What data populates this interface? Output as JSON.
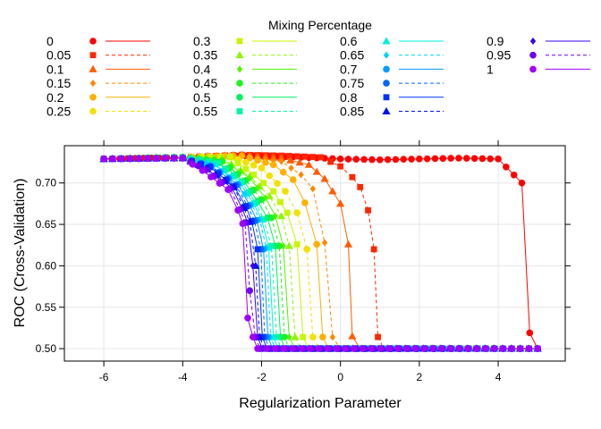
{
  "chart_data": {
    "type": "line",
    "title": "",
    "xlabel": "Regularization Parameter",
    "ylabel": "ROC (Cross-Validation)",
    "xlim": [
      -7.0,
      5.7
    ],
    "ylim": [
      0.485,
      0.745
    ],
    "xticks": [
      -6,
      -4,
      -2,
      0,
      2,
      4
    ],
    "yticks": [
      0.5,
      0.55,
      0.6,
      0.65,
      0.7
    ],
    "ytick_labels": [
      "0.50",
      "0.55",
      "0.60",
      "0.65",
      "0.70"
    ],
    "grid": true,
    "legend": {
      "title": "Mixing Percentage",
      "placement": "top",
      "columns": 4,
      "entries": [
        "0",
        "0.05",
        "0.1",
        "0.15",
        "0.2",
        "0.25",
        "0.3",
        "0.35",
        "0.4",
        "0.45",
        "0.5",
        "0.55",
        "0.6",
        "0.65",
        "0.7",
        "0.75",
        "0.8",
        "0.85",
        "0.9",
        "0.95",
        "1"
      ]
    },
    "series": [
      {
        "name": "0",
        "color": "#FF0000",
        "marker": "circle",
        "linestyle": "solid",
        "x": [
          -6.0,
          -5.0,
          -4.0,
          -3.0,
          -2.0,
          -1.0,
          0.0,
          1.0,
          2.0,
          3.0,
          4.0,
          4.6,
          4.8,
          5.0
        ],
        "y": [
          0.729,
          0.73,
          0.731,
          0.732,
          0.733,
          0.731,
          0.729,
          0.728,
          0.729,
          0.73,
          0.729,
          0.7,
          0.519,
          0.5
        ]
      },
      {
        "name": "0.05",
        "color": "#FF2600",
        "marker": "square",
        "linestyle": "dashed",
        "x": [
          -6.0,
          -4.0,
          -2.5,
          -1.5,
          -0.5,
          0.0,
          0.3,
          0.5,
          0.7,
          0.85,
          0.95,
          1.1,
          5.0
        ],
        "y": [
          0.729,
          0.731,
          0.734,
          0.733,
          0.731,
          0.72,
          0.707,
          0.695,
          0.667,
          0.62,
          0.514,
          0.5,
          0.5
        ]
      },
      {
        "name": "0.1",
        "color": "#FF5C00",
        "marker": "triangle-up",
        "linestyle": "solid",
        "x": [
          -6.0,
          -4.0,
          -2.5,
          -1.5,
          -0.8,
          -0.4,
          0.0,
          0.2,
          0.3,
          0.5,
          5.0
        ],
        "y": [
          0.729,
          0.731,
          0.734,
          0.73,
          0.722,
          0.705,
          0.675,
          0.626,
          0.515,
          0.5,
          0.5
        ]
      },
      {
        "name": "0.15",
        "color": "#FF8800",
        "marker": "diamond",
        "linestyle": "dashed",
        "x": [
          -6.0,
          -4.0,
          -2.5,
          -1.5,
          -1.0,
          -0.7,
          -0.4,
          -0.2,
          0.0,
          5.0
        ],
        "y": [
          0.729,
          0.731,
          0.733,
          0.726,
          0.71,
          0.693,
          0.628,
          0.514,
          0.5,
          0.5
        ]
      },
      {
        "name": "0.2",
        "color": "#FFB000",
        "marker": "circle",
        "linestyle": "solid",
        "x": [
          -6.0,
          -4.0,
          -2.5,
          -1.7,
          -1.2,
          -0.9,
          -0.6,
          -0.45,
          -0.3,
          5.0
        ],
        "y": [
          0.729,
          0.731,
          0.733,
          0.722,
          0.704,
          0.676,
          0.626,
          0.514,
          0.5,
          0.5
        ]
      },
      {
        "name": "0.25",
        "color": "#F2E200",
        "marker": "circle",
        "linestyle": "dashed",
        "x": [
          -6.0,
          -4.0,
          -2.8,
          -2.0,
          -1.4,
          -1.1,
          -0.85,
          -0.7,
          -0.55,
          5.0
        ],
        "y": [
          0.729,
          0.731,
          0.732,
          0.718,
          0.69,
          0.664,
          0.62,
          0.514,
          0.5,
          0.5
        ]
      },
      {
        "name": "0.3",
        "color": "#C7F500",
        "marker": "square",
        "linestyle": "solid",
        "x": [
          -6.0,
          -4.0,
          -2.8,
          -2.2,
          -1.7,
          -1.35,
          -1.1,
          -0.95,
          -0.8,
          5.0
        ],
        "y": [
          0.729,
          0.731,
          0.731,
          0.71,
          0.69,
          0.664,
          0.626,
          0.514,
          0.5,
          0.5
        ]
      },
      {
        "name": "0.35",
        "color": "#8EF500",
        "marker": "triangle-up",
        "linestyle": "dashed",
        "x": [
          -6.0,
          -4.0,
          -3.0,
          -2.3,
          -1.8,
          -1.5,
          -1.3,
          -1.15,
          -1.0,
          5.0
        ],
        "y": [
          0.729,
          0.731,
          0.73,
          0.708,
          0.684,
          0.66,
          0.624,
          0.514,
          0.5,
          0.5
        ]
      },
      {
        "name": "0.4",
        "color": "#52F500",
        "marker": "diamond",
        "linestyle": "solid",
        "x": [
          -6.0,
          -4.0,
          -3.0,
          -2.3,
          -1.9,
          -1.65,
          -1.45,
          -1.3,
          -1.15,
          5.0
        ],
        "y": [
          0.729,
          0.731,
          0.728,
          0.706,
          0.682,
          0.66,
          0.624,
          0.514,
          0.5,
          0.5
        ]
      },
      {
        "name": "0.45",
        "color": "#1FF21F",
        "marker": "circle",
        "linestyle": "dashed",
        "x": [
          -6.0,
          -4.0,
          -3.0,
          -2.4,
          -2.0,
          -1.75,
          -1.55,
          -1.42,
          -1.3,
          5.0
        ],
        "y": [
          0.729,
          0.731,
          0.726,
          0.703,
          0.68,
          0.658,
          0.624,
          0.514,
          0.5,
          0.5
        ]
      },
      {
        "name": "0.5",
        "color": "#00F060",
        "marker": "circle",
        "linestyle": "solid",
        "x": [
          -6.0,
          -4.0,
          -3.1,
          -2.45,
          -2.1,
          -1.85,
          -1.65,
          -1.52,
          -1.4,
          5.0
        ],
        "y": [
          0.729,
          0.731,
          0.725,
          0.702,
          0.678,
          0.658,
          0.624,
          0.514,
          0.5,
          0.5
        ]
      },
      {
        "name": "0.55",
        "color": "#00F5A0",
        "marker": "square",
        "linestyle": "dashed",
        "x": [
          -6.0,
          -4.0,
          -3.1,
          -2.5,
          -2.15,
          -1.95,
          -1.75,
          -1.62,
          -1.5,
          5.0
        ],
        "y": [
          0.729,
          0.731,
          0.724,
          0.701,
          0.676,
          0.656,
          0.624,
          0.514,
          0.5,
          0.5
        ]
      },
      {
        "name": "0.6",
        "color": "#00F0DC",
        "marker": "triangle-up",
        "linestyle": "solid",
        "x": [
          -6.0,
          -4.0,
          -3.2,
          -2.55,
          -2.2,
          -2.0,
          -1.82,
          -1.7,
          -1.58,
          5.0
        ],
        "y": [
          0.729,
          0.731,
          0.723,
          0.7,
          0.675,
          0.656,
          0.622,
          0.514,
          0.5,
          0.5
        ]
      },
      {
        "name": "0.65",
        "color": "#00D2FF",
        "marker": "diamond",
        "linestyle": "dashed",
        "x": [
          -6.0,
          -4.0,
          -3.2,
          -2.6,
          -2.25,
          -2.05,
          -1.88,
          -1.77,
          -1.65,
          5.0
        ],
        "y": [
          0.729,
          0.731,
          0.722,
          0.699,
          0.674,
          0.656,
          0.622,
          0.514,
          0.5,
          0.5
        ]
      },
      {
        "name": "0.7",
        "color": "#009CFF",
        "marker": "circle",
        "linestyle": "solid",
        "x": [
          -6.0,
          -4.0,
          -3.3,
          -2.6,
          -2.3,
          -2.12,
          -1.95,
          -1.84,
          -1.72,
          5.0
        ],
        "y": [
          0.729,
          0.73,
          0.721,
          0.698,
          0.673,
          0.655,
          0.62,
          0.514,
          0.5,
          0.5
        ]
      },
      {
        "name": "0.75",
        "color": "#0066FF",
        "marker": "circle",
        "linestyle": "dashed",
        "x": [
          -6.0,
          -4.0,
          -3.3,
          -2.65,
          -2.35,
          -2.18,
          -2.02,
          -1.92,
          -1.8,
          5.0
        ],
        "y": [
          0.729,
          0.73,
          0.72,
          0.697,
          0.672,
          0.654,
          0.62,
          0.514,
          0.5,
          0.5
        ]
      },
      {
        "name": "0.8",
        "color": "#0030FF",
        "marker": "square",
        "linestyle": "solid",
        "x": [
          -6.0,
          -4.0,
          -3.3,
          -2.7,
          -2.4,
          -2.25,
          -2.1,
          -1.98,
          -1.86,
          5.0
        ],
        "y": [
          0.729,
          0.73,
          0.719,
          0.696,
          0.672,
          0.654,
          0.62,
          0.514,
          0.5,
          0.5
        ]
      },
      {
        "name": "0.85",
        "color": "#0010F0",
        "marker": "triangle-up",
        "linestyle": "dashed",
        "x": [
          -6.0,
          -4.0,
          -3.4,
          -2.7,
          -2.45,
          -2.3,
          -2.15,
          -2.05,
          -1.92,
          5.0
        ],
        "y": [
          0.729,
          0.73,
          0.718,
          0.695,
          0.67,
          0.653,
          0.6,
          0.514,
          0.5,
          0.5
        ]
      },
      {
        "name": "0.9",
        "color": "#3A00F0",
        "marker": "diamond",
        "linestyle": "solid",
        "x": [
          -6.0,
          -4.0,
          -3.4,
          -2.75,
          -2.5,
          -2.35,
          -2.22,
          -2.1,
          -1.98,
          5.0
        ],
        "y": [
          0.729,
          0.73,
          0.717,
          0.694,
          0.67,
          0.652,
          0.6,
          0.514,
          0.5,
          0.5
        ]
      },
      {
        "name": "0.95",
        "color": "#6E00F0",
        "marker": "circle",
        "linestyle": "dashed",
        "x": [
          -6.0,
          -4.0,
          -3.4,
          -2.8,
          -2.55,
          -2.42,
          -2.3,
          -2.16,
          -2.04,
          5.0
        ],
        "y": [
          0.729,
          0.73,
          0.716,
          0.693,
          0.668,
          0.652,
          0.57,
          0.514,
          0.5,
          0.5
        ]
      },
      {
        "name": "1",
        "color": "#A000FF",
        "marker": "circle",
        "linestyle": "solid",
        "x": [
          -6.0,
          -4.0,
          -3.5,
          -2.85,
          -2.6,
          -2.48,
          -2.35,
          -2.22,
          -2.1,
          5.0
        ],
        "y": [
          0.729,
          0.73,
          0.715,
          0.692,
          0.667,
          0.651,
          0.537,
          0.514,
          0.5,
          0.5
        ]
      }
    ]
  }
}
